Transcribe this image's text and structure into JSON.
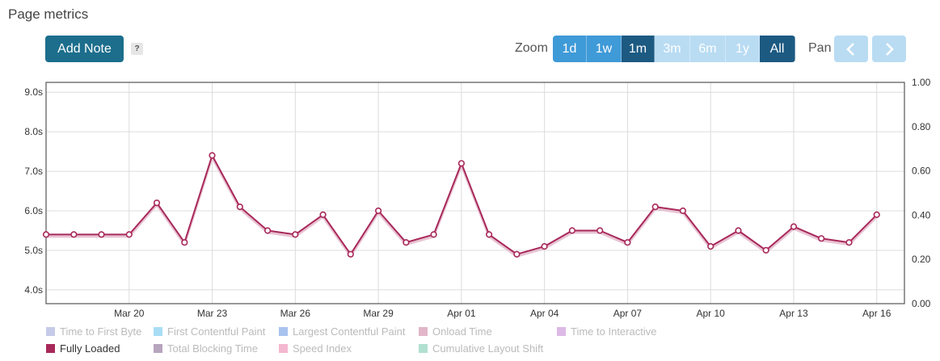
{
  "page": {
    "title": "Page metrics"
  },
  "toolbar": {
    "add_note_label": "Add Note",
    "help_label": "?",
    "zoom_label": "Zoom",
    "zoom_options": [
      {
        "label": "1d",
        "state": "active"
      },
      {
        "label": "1w",
        "state": "active"
      },
      {
        "label": "1m",
        "state": "selected"
      },
      {
        "label": "3m",
        "state": "disabled"
      },
      {
        "label": "6m",
        "state": "disabled"
      },
      {
        "label": "1y",
        "state": "disabled"
      },
      {
        "label": "All",
        "state": "selected"
      }
    ],
    "pan_label": "Pan",
    "pan_left_icon": "chevron-left-icon",
    "pan_right_icon": "chevron-right-icon"
  },
  "colors": {
    "series": "#a8285a",
    "button_primary": "#1c6e8c",
    "zoom_active": "#3f9ad8",
    "zoom_selected": "#1c5a82",
    "zoom_disabled": "#b9dcf3"
  },
  "chart_data": {
    "type": "line",
    "x": [
      "2023-03-17",
      "2023-03-18",
      "2023-03-19",
      "2023-03-20",
      "2023-03-21",
      "2023-03-22",
      "2023-03-23",
      "2023-03-24",
      "2023-03-25",
      "2023-03-26",
      "2023-03-27",
      "2023-03-28",
      "2023-03-29",
      "2023-03-30",
      "2023-03-31",
      "2023-04-01",
      "2023-04-02",
      "2023-04-03",
      "2023-04-04",
      "2023-04-05",
      "2023-04-06",
      "2023-04-07",
      "2023-04-08",
      "2023-04-09",
      "2023-04-10",
      "2023-04-11",
      "2023-04-12",
      "2023-04-13",
      "2023-04-14",
      "2023-04-15",
      "2023-04-16"
    ],
    "x_ticks": [
      {
        "date": "2023-03-20",
        "label": "Mar 20"
      },
      {
        "date": "2023-03-23",
        "label": "Mar 23"
      },
      {
        "date": "2023-03-26",
        "label": "Mar 26"
      },
      {
        "date": "2023-03-29",
        "label": "Mar 29"
      },
      {
        "date": "2023-04-01",
        "label": "Apr 01"
      },
      {
        "date": "2023-04-04",
        "label": "Apr 04"
      },
      {
        "date": "2023-04-07",
        "label": "Apr 07"
      },
      {
        "date": "2023-04-10",
        "label": "Apr 10"
      },
      {
        "date": "2023-04-13",
        "label": "Apr 13"
      },
      {
        "date": "2023-04-16",
        "label": "Apr 16"
      }
    ],
    "x_range": [
      "2023-03-17",
      "2023-04-17"
    ],
    "series": [
      {
        "name": "Fully Loaded",
        "values": [
          5.4,
          5.4,
          5.4,
          5.4,
          6.2,
          5.2,
          7.4,
          6.1,
          5.5,
          5.4,
          5.9,
          4.9,
          6.0,
          5.2,
          5.4,
          7.2,
          5.4,
          4.9,
          5.1,
          5.5,
          5.5,
          5.2,
          6.1,
          6.0,
          5.1,
          5.5,
          5.0,
          5.6,
          5.3,
          5.2,
          5.9
        ]
      }
    ],
    "y_ticks": [
      {
        "value": 4.0,
        "label": "4.0s"
      },
      {
        "value": 5.0,
        "label": "5.0s"
      },
      {
        "value": 6.0,
        "label": "6.0s"
      },
      {
        "value": 7.0,
        "label": "7.0s"
      },
      {
        "value": 8.0,
        "label": "8.0s"
      },
      {
        "value": 9.0,
        "label": "9.0s"
      }
    ],
    "ylim": [
      3.65,
      9.25
    ],
    "y2_ticks": [
      "0.00",
      "0.20",
      "0.40",
      "0.60",
      "0.80",
      "1.00"
    ],
    "y2lim": [
      0,
      1
    ],
    "grid": true,
    "legend_position": "bottom-left",
    "legend": [
      {
        "label": "Time to First Byte",
        "color": "#c5cbe8",
        "enabled": false
      },
      {
        "label": "First Contentful Paint",
        "color": "#a8ddf5",
        "enabled": false
      },
      {
        "label": "Largest Contentful Paint",
        "color": "#a9c3ef",
        "enabled": false
      },
      {
        "label": "Onload Time",
        "color": "#e2b6c8",
        "enabled": false
      },
      {
        "label": "Time to Interactive",
        "color": "#dcb9e6",
        "enabled": false
      },
      {
        "label": "Fully Loaded",
        "color": "#a8285a",
        "enabled": true
      },
      {
        "label": "Total Blocking Time",
        "color": "#b7a4bd",
        "enabled": false
      },
      {
        "label": "Speed Index",
        "color": "#f3b7cf",
        "enabled": false
      },
      {
        "label": "Cumulative Layout Shift",
        "color": "#b1e0d1",
        "enabled": false
      }
    ]
  }
}
